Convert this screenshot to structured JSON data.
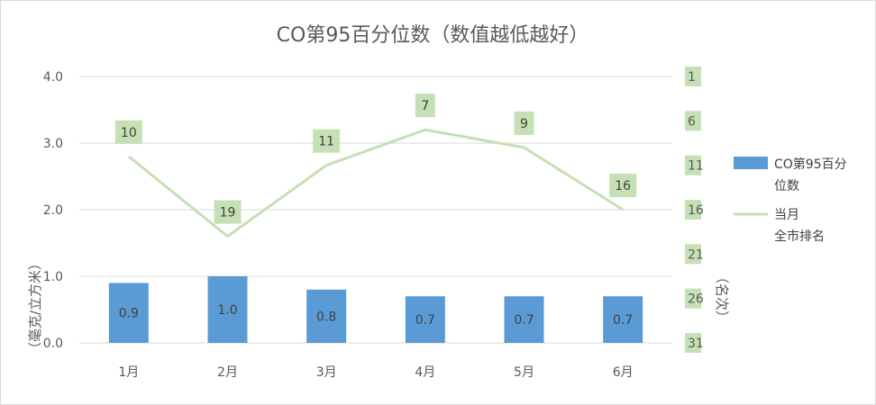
{
  "chart_data": {
    "type": "bar",
    "title": "CO第95百分位数（数值越低越好）",
    "categories": [
      "1月",
      "2月",
      "3月",
      "4月",
      "5月",
      "6月"
    ],
    "series": [
      {
        "name": "CO第95百分位数",
        "type": "bar",
        "axis": "left",
        "values": [
          0.9,
          1.0,
          0.8,
          0.7,
          0.7,
          0.7
        ],
        "labels": [
          "0.9",
          "1.0",
          "0.8",
          "0.7",
          "0.7",
          "0.7"
        ]
      },
      {
        "name": "当月全市排名",
        "type": "line",
        "axis": "right",
        "values": [
          10,
          19,
          11,
          7,
          9,
          16
        ],
        "labels": [
          "10",
          "19",
          "11",
          "7",
          "9",
          "16"
        ]
      }
    ],
    "legend": [
      {
        "lines": [
          "CO第95百分",
          "位数"
        ]
      },
      {
        "lines": [
          "当月",
          "全市排名"
        ]
      }
    ],
    "ylabel": "（毫克/立方米）",
    "y2label": "（名次）",
    "ylim": [
      0,
      4
    ],
    "yticks": [
      "0.0",
      "1.0",
      "2.0",
      "3.0",
      "4.0"
    ],
    "y2lim": [
      31,
      1
    ],
    "y2ticks": [
      "1",
      "6",
      "11",
      "16",
      "21",
      "26",
      "31"
    ],
    "y2_reversed": true,
    "grid": true,
    "legend_position": "right",
    "colors": {
      "bar": "#5b9bd5",
      "line": "#c5e0b4",
      "label_bg": "#c5e0b4",
      "grid": "#d9d9d9",
      "text": "#595959"
    }
  }
}
